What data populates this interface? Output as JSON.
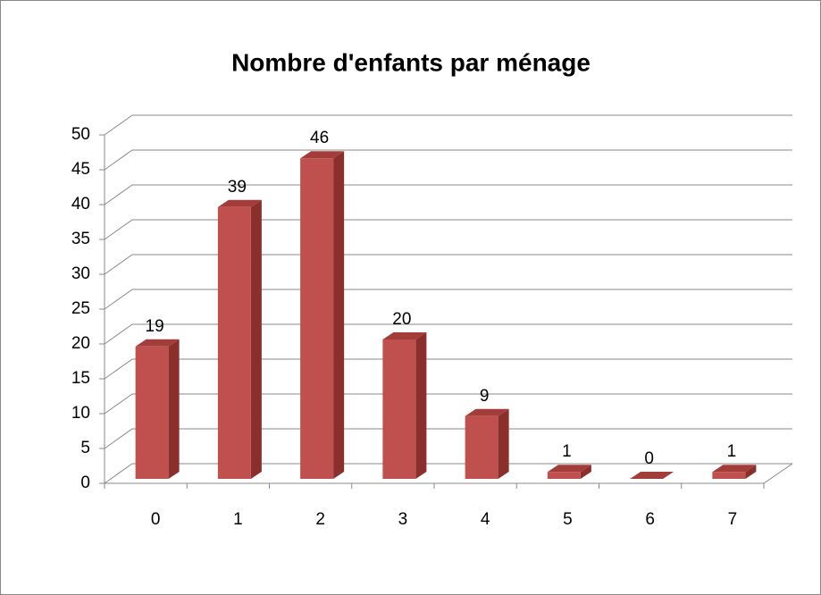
{
  "chart_data": {
    "type": "bar",
    "title": "Nombre d'enfants par ménage",
    "categories": [
      "0",
      "1",
      "2",
      "3",
      "4",
      "5",
      "6",
      "7"
    ],
    "values": [
      19,
      39,
      46,
      20,
      9,
      1,
      0,
      1
    ],
    "color": "#c0504d",
    "ylim": [
      0,
      50
    ],
    "yticks": [
      0,
      5,
      10,
      15,
      20,
      25,
      30,
      35,
      40,
      45,
      50
    ],
    "grid": true
  }
}
